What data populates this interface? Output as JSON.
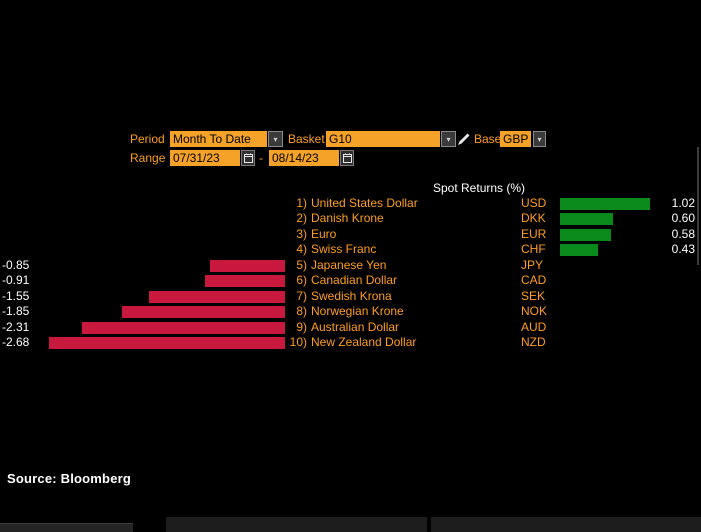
{
  "controls": {
    "period": {
      "label": "Period",
      "value": "Month To Date"
    },
    "basket": {
      "label": "Basket",
      "value": "G10"
    },
    "base": {
      "label": "Base",
      "value": "GBP"
    },
    "range": {
      "label": "Range",
      "start": "07/31/23",
      "separator": "-",
      "end": "08/14/23"
    },
    "dropdown_arrow_glyph": "▾"
  },
  "chart_data": {
    "type": "bar",
    "orientation": "horizontal",
    "title": "Spot Returns (%)",
    "base_currency": "GBP",
    "unit": "%",
    "ranks": [
      "1)",
      "2)",
      "3)",
      "4)",
      "5)",
      "6)",
      "7)",
      "8)",
      "9)",
      "10)"
    ],
    "categories": [
      "United States Dollar",
      "Danish Krone",
      "Euro",
      "Swiss Franc",
      "Japanese Yen",
      "Canadian Dollar",
      "Swedish Krona",
      "Norwegian Krone",
      "Australian Dollar",
      "New Zealand Dollar"
    ],
    "codes": [
      "USD",
      "DKK",
      "EUR",
      "CHF",
      "JPY",
      "CAD",
      "SEK",
      "NOK",
      "AUD",
      "NZD"
    ],
    "values": [
      1.02,
      0.6,
      0.58,
      0.43,
      -0.85,
      -0.91,
      -1.55,
      -1.85,
      -2.31,
      -2.68
    ],
    "display_values": [
      "1.02",
      "0.60",
      "0.58",
      "0.43",
      "-0.85",
      "-0.91",
      "-1.55",
      "-1.85",
      "-2.31",
      "-2.68"
    ],
    "positive_color": "#0a8a1a",
    "negative_color": "#c9183d",
    "label_color": "#ff9e1f",
    "value_text_color": "#ffffff",
    "grid": false,
    "value_range_hint": [
      -2.68,
      1.02
    ]
  },
  "footer": {
    "source": "Source: Bloomberg"
  }
}
